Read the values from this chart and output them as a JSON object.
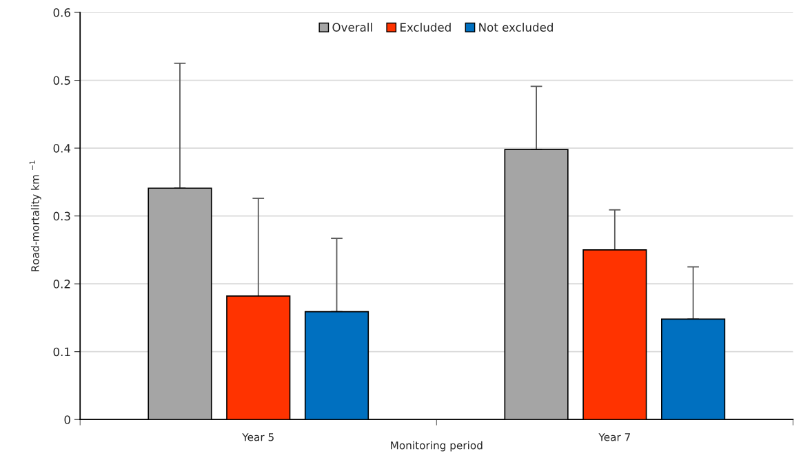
{
  "chart_data": {
    "type": "bar",
    "xlabel": "Monitoring period",
    "ylabel": "Road-mortality km $^{−1}$",
    "categories": [
      "Year 5",
      "Year 7"
    ],
    "series": [
      {
        "name": "Overall",
        "color": "#a5a5a5",
        "values": [
          0.341,
          0.398
        ],
        "errors": [
          [
            0.341,
            0.525
          ],
          [
            0.398,
            0.491
          ]
        ]
      },
      {
        "name": "Excluded",
        "color": "#ff3300",
        "values": [
          0.182,
          0.25
        ],
        "errors": [
          [
            0.182,
            0.326
          ],
          [
            0.25,
            0.309
          ]
        ]
      },
      {
        "name": "Not excluded",
        "color": "#0070c0",
        "values": [
          0.159,
          0.148
        ],
        "errors": [
          [
            0.159,
            0.267
          ],
          [
            0.148,
            0.225
          ]
        ]
      }
    ],
    "ylim": [
      0,
      0.6
    ],
    "yticks": [
      0,
      0.1,
      0.2,
      0.3,
      0.4,
      0.5,
      0.6
    ],
    "grid": "y",
    "legend": "top"
  }
}
